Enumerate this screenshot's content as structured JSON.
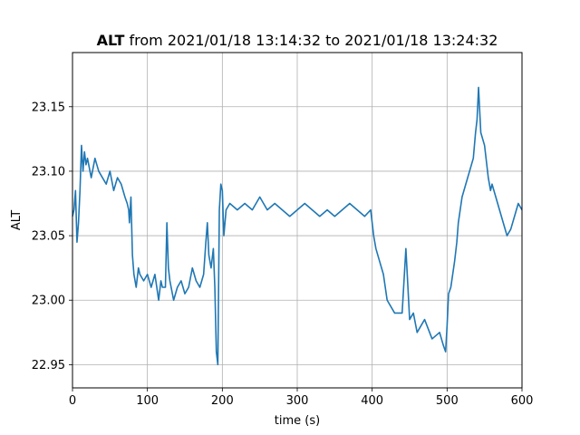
{
  "chart_data": {
    "type": "line",
    "title_bold": "ALT",
    "title_rest": " from 2021/01/18 13:14:32 to 2021/01/18 13:24:32",
    "xlabel": "time (s)",
    "ylabel": "ALT",
    "xlim": [
      0,
      600
    ],
    "ylim": [
      22.932,
      23.192
    ],
    "xticks": [
      0,
      100,
      200,
      300,
      400,
      500,
      600
    ],
    "xtick_labels": [
      "0",
      "100",
      "200",
      "300",
      "400",
      "500",
      "600"
    ],
    "yticks": [
      22.95,
      23.0,
      23.05,
      23.1,
      23.15
    ],
    "ytick_labels": [
      "22.95",
      "23.00",
      "23.05",
      "23.10",
      "23.15"
    ],
    "grid": true,
    "line_color": "#1f77b4",
    "series": [
      {
        "name": "",
        "x": [
          0,
          2,
          4,
          6,
          8,
          10,
          12,
          14,
          16,
          18,
          20,
          25,
          30,
          35,
          40,
          45,
          50,
          55,
          60,
          65,
          70,
          73,
          75,
          76,
          78,
          80,
          82,
          85,
          88,
          90,
          95,
          100,
          105,
          110,
          115,
          118,
          120,
          124,
          126,
          128,
          130,
          135,
          140,
          145,
          150,
          155,
          160,
          165,
          170,
          175,
          178,
          180,
          182,
          185,
          188,
          190,
          192,
          194,
          196,
          198,
          200,
          202,
          205,
          210,
          220,
          230,
          240,
          250,
          260,
          270,
          280,
          290,
          300,
          310,
          320,
          330,
          340,
          350,
          360,
          370,
          380,
          390,
          398,
          400,
          402,
          405,
          410,
          415,
          420,
          430,
          440,
          445,
          450,
          455,
          460,
          470,
          480,
          490,
          495,
          498,
          500,
          502,
          505,
          510,
          513,
          515,
          520,
          525,
          530,
          535,
          538,
          540,
          542,
          545,
          550,
          555,
          558,
          560,
          565,
          570,
          575,
          580,
          585,
          590,
          595,
          600
        ],
        "y": [
          23.065,
          23.07,
          23.085,
          23.045,
          23.06,
          23.085,
          23.12,
          23.1,
          23.115,
          23.105,
          23.11,
          23.095,
          23.11,
          23.1,
          23.095,
          23.09,
          23.1,
          23.085,
          23.095,
          23.09,
          23.08,
          23.075,
          23.07,
          23.06,
          23.08,
          23.035,
          23.02,
          23.01,
          23.025,
          23.02,
          23.015,
          23.02,
          23.01,
          23.02,
          23.0,
          23.015,
          23.01,
          23.01,
          23.06,
          23.025,
          23.015,
          23.0,
          23.01,
          23.015,
          23.005,
          23.01,
          23.025,
          23.015,
          23.01,
          23.02,
          23.045,
          23.06,
          23.035,
          23.025,
          23.04,
          23.01,
          22.96,
          22.95,
          23.07,
          23.09,
          23.085,
          23.05,
          23.07,
          23.075,
          23.07,
          23.075,
          23.07,
          23.08,
          23.07,
          23.075,
          23.07,
          23.065,
          23.07,
          23.075,
          23.07,
          23.065,
          23.07,
          23.065,
          23.07,
          23.075,
          23.07,
          23.065,
          23.07,
          23.06,
          23.05,
          23.04,
          23.03,
          23.02,
          23.0,
          22.99,
          22.99,
          23.04,
          22.985,
          22.99,
          22.975,
          22.985,
          22.97,
          22.975,
          22.965,
          22.96,
          22.98,
          23.005,
          23.01,
          23.03,
          23.045,
          23.06,
          23.08,
          23.09,
          23.1,
          23.11,
          23.13,
          23.14,
          23.165,
          23.13,
          23.12,
          23.095,
          23.085,
          23.09,
          23.08,
          23.07,
          23.06,
          23.05,
          23.055,
          23.065,
          23.075,
          23.07
        ]
      }
    ]
  }
}
